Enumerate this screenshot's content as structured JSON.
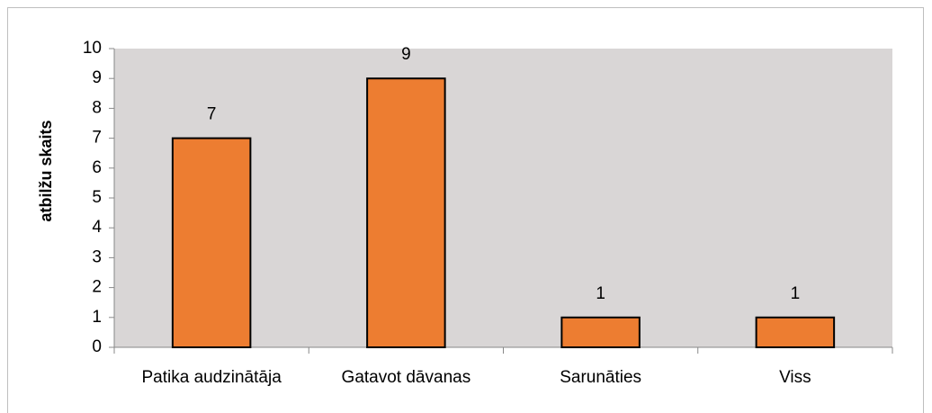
{
  "chart_data": {
    "type": "bar",
    "y_label": "atbilžu skaits",
    "categories": [
      "Patika audzinātāja",
      "Gatavot dāvanas",
      "Sarunāties",
      "Viss"
    ],
    "values": [
      7,
      9,
      1,
      1
    ],
    "color": "#ed7d31",
    "plot_background": "#d9d6d6",
    "ylim": [
      0,
      10
    ],
    "yticks": [
      0,
      1,
      2,
      3,
      4,
      5,
      6,
      7,
      8,
      9,
      10
    ],
    "grid": false
  }
}
